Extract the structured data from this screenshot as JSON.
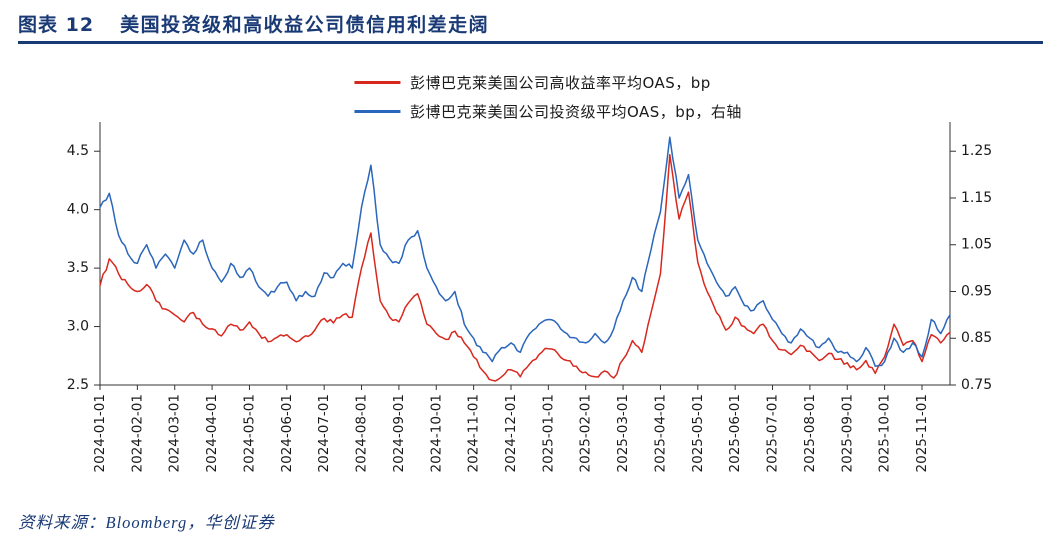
{
  "page": {
    "header": {
      "tag": "图表 12",
      "title": "美国投资级和高收益公司债信用利差走阔"
    },
    "footer": {
      "source": "资料来源：Bloomberg，华创证券"
    }
  },
  "colors": {
    "accent": "#1a3a75",
    "axis": "#333333",
    "hy_red": "#d8281e",
    "ig_blue": "#2a66bb"
  },
  "chart_data": {
    "type": "line",
    "title": "美国投资级和高收益公司债信用利差走阔",
    "grid": false,
    "legend_position": "top-center",
    "points_per_month": 4,
    "categories": [
      "2024-01-01",
      "2024-02-01",
      "2024-03-01",
      "2024-04-01",
      "2024-05-01",
      "2024-06-01",
      "2024-07-01",
      "2024-08-01",
      "2024-09-01",
      "2024-10-01",
      "2024-11-01",
      "2024-12-01",
      "2025-01-01",
      "2025-02-01",
      "2025-03-01",
      "2025-04-01",
      "2025-05-01",
      "2025-06-01",
      "2025-07-01",
      "2025-08-01",
      "2025-09-01",
      "2025-10-01",
      "2025-11-01"
    ],
    "left_axis": {
      "min": 2.5,
      "max": 4.75,
      "ticks": [
        2.5,
        3.0,
        3.5,
        4.0,
        4.5
      ],
      "decimals": 1
    },
    "right_axis": {
      "min": 0.75,
      "max": 1.3125,
      "ticks": [
        0.75,
        0.85,
        0.95,
        1.05,
        1.15,
        1.25
      ],
      "decimals": 2
    },
    "series": [
      {
        "name": "彭博巴克莱美国公司高收益率平均OAS，bp",
        "axis": "left",
        "color": "#d8281e",
        "values": [
          3.35,
          3.58,
          3.45,
          3.36,
          3.3,
          3.36,
          3.22,
          3.15,
          3.1,
          3.04,
          3.12,
          3.02,
          2.98,
          2.92,
          3.02,
          2.97,
          3.04,
          2.94,
          2.87,
          2.91,
          2.93,
          2.87,
          2.92,
          2.97,
          3.07,
          3.03,
          3.1,
          3.08,
          3.5,
          3.8,
          3.22,
          3.08,
          3.04,
          3.2,
          3.28,
          3.02,
          2.94,
          2.89,
          2.96,
          2.86,
          2.74,
          2.62,
          2.54,
          2.57,
          2.63,
          2.57,
          2.68,
          2.76,
          2.81,
          2.77,
          2.71,
          2.66,
          2.61,
          2.57,
          2.62,
          2.56,
          2.72,
          2.88,
          2.78,
          3.12,
          3.45,
          4.47,
          3.92,
          4.15,
          3.55,
          3.3,
          3.12,
          2.97,
          3.08,
          3.0,
          2.94,
          3.02,
          2.88,
          2.8,
          2.76,
          2.84,
          2.79,
          2.71,
          2.77,
          2.72,
          2.69,
          2.63,
          2.71,
          2.6,
          2.74,
          3.02,
          2.84,
          2.88,
          2.7,
          2.93,
          2.86,
          2.95
        ]
      },
      {
        "name": "彭博巴克莱美国公司投资级平均OAS，bp，右轴",
        "axis": "right",
        "color": "#2a66bb",
        "values": [
          1.13,
          1.16,
          1.07,
          1.03,
          1.01,
          1.05,
          1.0,
          1.03,
          1.0,
          1.06,
          1.03,
          1.06,
          1.0,
          0.97,
          1.01,
          0.98,
          1.0,
          0.96,
          0.94,
          0.96,
          0.97,
          0.93,
          0.95,
          0.94,
          0.99,
          0.98,
          1.01,
          1.0,
          1.13,
          1.22,
          1.05,
          1.02,
          1.01,
          1.06,
          1.08,
          1.0,
          0.96,
          0.93,
          0.95,
          0.88,
          0.85,
          0.82,
          0.8,
          0.83,
          0.84,
          0.82,
          0.86,
          0.88,
          0.89,
          0.88,
          0.86,
          0.85,
          0.84,
          0.86,
          0.84,
          0.87,
          0.93,
          0.98,
          0.95,
          1.04,
          1.12,
          1.28,
          1.15,
          1.2,
          1.06,
          1.01,
          0.97,
          0.94,
          0.96,
          0.92,
          0.91,
          0.93,
          0.89,
          0.86,
          0.84,
          0.87,
          0.85,
          0.83,
          0.85,
          0.82,
          0.82,
          0.8,
          0.83,
          0.79,
          0.8,
          0.85,
          0.82,
          0.84,
          0.81,
          0.89,
          0.86,
          0.9
        ]
      }
    ]
  }
}
